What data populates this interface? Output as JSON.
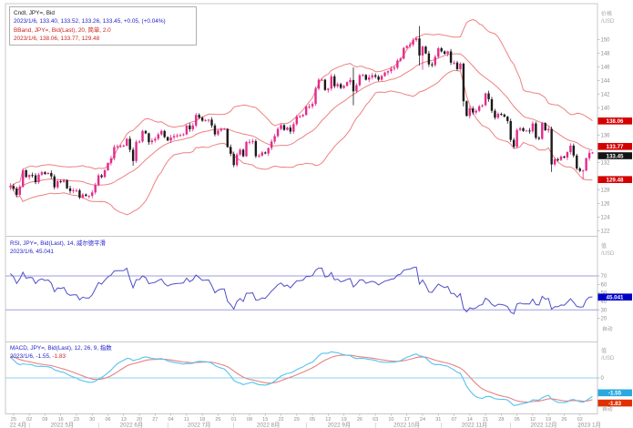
{
  "main_legend": {
    "line1": "Cndl, JPY=, Bid",
    "line2": "2023/1/6, 133.40, 133.52, 133.26, 133.45, +0.05, (+0.04%)",
    "line3": "BBand, JPY=, Bid(Last), 20, 简单, 2.0",
    "line4": "2023/1/6, 138.06, 133.77, 129.48"
  },
  "rsi_legend": {
    "line1": "RSI, JPY=, Bid(Last), 14, 威尔德平滑",
    "line2": "2023/1/6, 45.041"
  },
  "macd_legend": {
    "line1": "MACD, JPY=, Bid(Last), 12, 26, 9, 指数",
    "line2_prefix": "2023/1/6, -1.55, ",
    "line2_value": "-1.83"
  },
  "axes": {
    "main": {
      "title1": "价格",
      "title2": "/USD"
    },
    "rsi": {
      "title1": "值",
      "title2": "/USD"
    },
    "macd": {
      "title1": "值",
      "title2": "/USD"
    },
    "auto_label": "自动",
    "price_ticks": [
      150,
      148,
      146,
      144,
      142,
      140,
      136,
      132,
      128,
      126,
      124,
      122
    ],
    "price_badges": [
      {
        "value": 138.06,
        "label": "138.06",
        "bg": "#d40000",
        "dy": 0
      },
      {
        "value": 133.77,
        "label": "133.77",
        "bg": "#d40000",
        "dy": -4.2
      },
      {
        "value": 133.45,
        "label": "133.45",
        "bg": "#141414",
        "dy": 3.6
      },
      {
        "value": 129.48,
        "label": "129.48",
        "bg": "#d40000",
        "dy": 0
      }
    ],
    "rsi_ticks": [
      70,
      60,
      50,
      40,
      30,
      20
    ],
    "rsi_badge": {
      "value": 45.041,
      "label": "45.041",
      "bg": "#0000c4"
    },
    "macd_ticks": [
      0
    ],
    "macd_badges": [
      {
        "value": -1.55,
        "label": "-1.55",
        "bg": "#2aa9e0",
        "dy": -3.8
      },
      {
        "value": -1.83,
        "label": "-1.83",
        "bg": "#e03000",
        "dy": 3.8
      }
    ]
  },
  "x_axis": {
    "week_tick_i": [
      1,
      6,
      11,
      16,
      21,
      26,
      31,
      36,
      41,
      46,
      51,
      56,
      61,
      66,
      71,
      76,
      81,
      86,
      91,
      96,
      101,
      106,
      111,
      116,
      121,
      126,
      131,
      136,
      141,
      146,
      151,
      156,
      161,
      166,
      171,
      176,
      181
    ],
    "week_tick_labels": [
      "25",
      "02",
      "09",
      "16",
      "23",
      "30",
      "06",
      "13",
      "20",
      "27",
      "04",
      "11",
      "18",
      "25",
      "01",
      "08",
      "15",
      "22",
      "29",
      "05",
      "12",
      "19",
      "26",
      "03",
      "10",
      "17",
      "24",
      "31",
      "07",
      "14",
      "21",
      "28",
      "05",
      "12",
      "19",
      "26",
      "02"
    ],
    "months": [
      {
        "label": "22 4月",
        "ci": 2.5
      },
      {
        "label": "2022 5月",
        "ci": 16.5
      },
      {
        "label": "2022 6月",
        "ci": 38.5
      },
      {
        "label": "2022 7月",
        "ci": 60
      },
      {
        "label": "2022 8月",
        "ci": 82
      },
      {
        "label": "2022 9月",
        "ci": 104.5
      },
      {
        "label": "2022 10月",
        "ci": 126
      },
      {
        "label": "2022 11月",
        "ci": 147.5
      },
      {
        "label": "2022 12月",
        "ci": 169.5
      },
      {
        "label": "2023 1月",
        "ci": 184
      }
    ],
    "month_boundaries": [
      6,
      28,
      50,
      71,
      94,
      116,
      137,
      159,
      181
    ]
  },
  "colors": {
    "up_candle": "#e42b8c",
    "down_candle": "#1a1a1a",
    "bollinger": "#ee8181",
    "rsi_line": "#4f4fc9",
    "rsi_ref": "#9f9fe0",
    "macd_line": "#56c2ee",
    "macd_signal": "#e88282",
    "macd_zero": "#8fd0ef",
    "axis_text": "#8e8e8e",
    "border": "#c8c8c8"
  },
  "chart_data": [
    {
      "type": "candlestick",
      "name": "Cndl JPY= Bid, daily, 2022-04-22 to 2023-01-06",
      "ylabel": "价格 /USD",
      "ylim": [
        121.4,
        155.2
      ],
      "last_ohlc": {
        "open": 133.4,
        "high": 133.52,
        "low": 133.26,
        "close": 133.45,
        "change": "+0.05",
        "change_pct": "+0.04%"
      },
      "first_open": 128.35,
      "closes": [
        128.55,
        128.15,
        127.25,
        128.45,
        130.85,
        129.85,
        130.15,
        130.1,
        129.1,
        130.2,
        130.55,
        130.3,
        130.45,
        129.95,
        128.35,
        129.25,
        129.15,
        129.4,
        128.2,
        127.8,
        127.9,
        127.9,
        126.85,
        127.3,
        127.1,
        127.1,
        127.6,
        128.7,
        130.1,
        129.85,
        130.85,
        131.9,
        132.6,
        134.25,
        134.35,
        134.4,
        134.45,
        135.45,
        133.85,
        132.2,
        135.0,
        135.05,
        136.6,
        136.25,
        134.95,
        135.2,
        135.45,
        136.1,
        136.6,
        135.7,
        135.2,
        135.65,
        135.85,
        135.95,
        136.0,
        136.1,
        137.4,
        136.85,
        137.4,
        138.95,
        138.55,
        138.1,
        138.2,
        138.25,
        137.4,
        136.1,
        136.65,
        136.9,
        136.9,
        134.25,
        133.25,
        131.6,
        133.15,
        133.85,
        132.9,
        135.0,
        135.0,
        135.1,
        132.9,
        133.0,
        133.45,
        133.3,
        134.1,
        135.05,
        135.85,
        136.9,
        137.45,
        136.75,
        137.1,
        136.5,
        137.6,
        138.7,
        138.75,
        138.95,
        140.2,
        140.2,
        140.55,
        142.8,
        144.1,
        144.1,
        142.6,
        142.8,
        144.6,
        143.15,
        143.45,
        142.9,
        143.2,
        143.75,
        144.05,
        142.4,
        143.3,
        144.75,
        144.8,
        144.1,
        144.45,
        144.75,
        144.55,
        144.1,
        144.65,
        145.15,
        145.35,
        145.7,
        145.85,
        146.9,
        147.2,
        148.75,
        149.05,
        149.25,
        149.9,
        150.15,
        147.65,
        148.95,
        147.95,
        146.35,
        146.25,
        147.45,
        148.7,
        148.25,
        147.9,
        148.25,
        146.6,
        146.6,
        145.65,
        146.45,
        140.95,
        138.8,
        139.9,
        139.3,
        139.55,
        140.2,
        140.35,
        142.1,
        141.25,
        139.55,
        138.55,
        139.1,
        139.0,
        138.7,
        138.05,
        135.3,
        134.3,
        136.75,
        137.0,
        136.6,
        136.65,
        136.55,
        137.7,
        135.6,
        135.45,
        137.75,
        136.7,
        136.9,
        131.7,
        132.45,
        132.35,
        132.85,
        132.7,
        133.5,
        134.45,
        133.0,
        131.1,
        130.75,
        130.8,
        132.6,
        133.4,
        133.45
      ],
      "wick_overrides": {
        "39": [
          null,
          131.5
        ],
        "109": [
          145.9,
          140.35
        ],
        "130": [
          151.95,
          146.2
        ],
        "131": [
          null,
          145.55
        ],
        "144": [
          null,
          140.2
        ],
        "172": [
          null,
          130.6
        ],
        "182": [
          null,
          129.5
        ],
        "185": [
          133.52,
          133.26
        ]
      },
      "overlay": {
        "type": "bollinger",
        "period": 20,
        "stddev": 2.0,
        "ma_type": "简单",
        "last_upper": 138.06,
        "last_mid": 133.77,
        "last_lower": 129.48
      }
    },
    {
      "type": "line",
      "name": "RSI 14 威尔德平滑",
      "last_value": 45.041,
      "ref_lines": [
        70,
        30
      ],
      "visible_ticks": [
        70,
        60,
        50,
        40,
        30,
        20
      ]
    },
    {
      "type": "line",
      "name": "MACD 12,26,9 指数",
      "last_macd": -1.55,
      "last_signal": -1.83,
      "ref_lines": [
        0
      ]
    }
  ]
}
